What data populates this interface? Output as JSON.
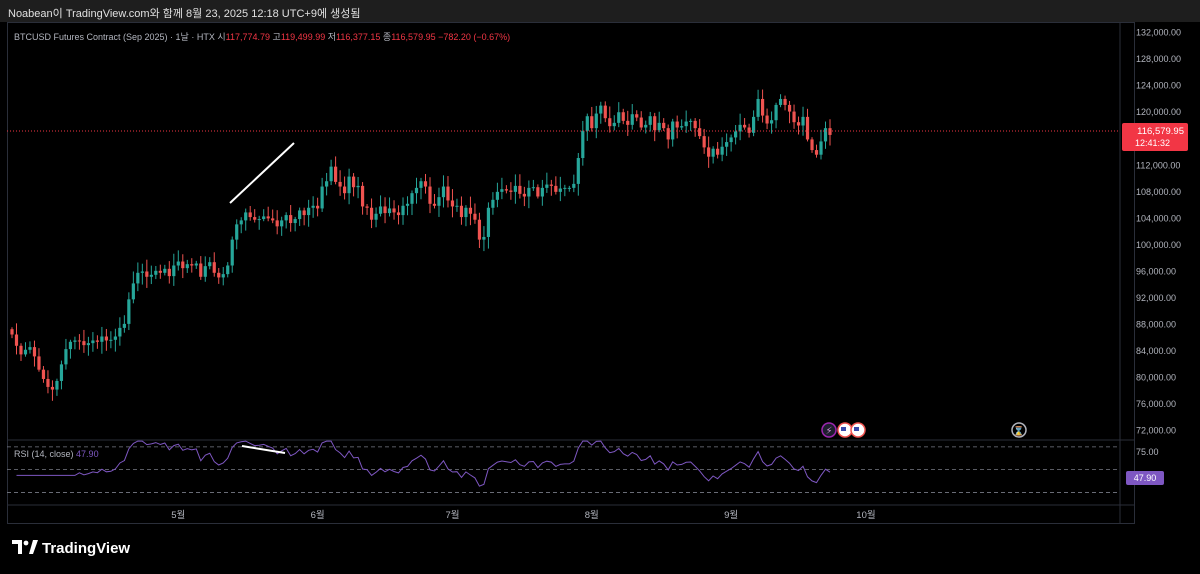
{
  "window": {
    "title": "Noabean이 TradingView.com와 함께 8월 23, 2025 12:18 UTC+9에 생성됨"
  },
  "legend": {
    "symbol": "BTCUSD Futures Contract (Sep 2025) · 1날 · HTX",
    "open_label": "시",
    "open": "117,774.79",
    "high_label": "고",
    "high": "119,499.99",
    "low_label": "저",
    "low": "116,377.15",
    "close_label": "종",
    "close": "116,579.95",
    "change": "−782.20 (−0.67%)"
  },
  "rsi_legend": {
    "name": "RSI (14, close)",
    "value": "47.90"
  },
  "brand": {
    "name": "TradingView"
  },
  "colors": {
    "up": "#26a69a",
    "down": "#ef5350",
    "rsi": "#7e57c2",
    "price_tag": "#f23645",
    "background": "#000000"
  },
  "chart_data": [
    {
      "type": "candlestick",
      "title": "BTCUSD Futures Contract (Sep 2025)",
      "timeframe": "1D",
      "exchange": "HTX",
      "x_labels": [
        "5월",
        "6월",
        "7월",
        "8월",
        "9월",
        "10월"
      ],
      "y_ticks": [
        "72,000.00",
        "76,000.00",
        "80,000.00",
        "84,000.00",
        "88,000.00",
        "92,000.00",
        "96,000.00",
        "100,000.00",
        "104,000.00",
        "108,000.00",
        "112,000.00",
        "116,000.00",
        "120,000.00",
        "124,000.00",
        "128,000.00",
        "132,000.00"
      ],
      "ylim": [
        70600,
        133600
      ],
      "last_price": "116,579.95",
      "countdown": "12:41:32",
      "series_close_approx": [
        86500,
        84800,
        83500,
        84200,
        84600,
        83200,
        81200,
        79800,
        78600,
        78200,
        79500,
        82000,
        84300,
        85400,
        85600,
        85500,
        84900,
        85200,
        85600,
        85400,
        86200,
        85600,
        85700,
        86200,
        87500,
        88100,
        91800,
        94200,
        95800,
        96000,
        95200,
        95500,
        96100,
        95800,
        96400,
        95300,
        96900,
        97500,
        96500,
        97100,
        96900,
        97200,
        95200,
        96800,
        97400,
        95800,
        95100,
        95600,
        96900,
        100800,
        103100,
        103700,
        104900,
        104200,
        103800,
        103900,
        104300,
        104000,
        103700,
        102800,
        103700,
        104500,
        103300,
        103900,
        105200,
        104500,
        105600,
        105900,
        105500,
        108800,
        109600,
        111800,
        109500,
        108800,
        107800,
        110300,
        108700,
        108900,
        105800,
        105600,
        103800,
        104700,
        105800,
        104800,
        105500,
        104900,
        104500,
        105900,
        106200,
        107800,
        108600,
        109600,
        108800,
        106200,
        105900,
        107200,
        108800,
        106700,
        105800,
        105900,
        104200,
        105600,
        104700,
        103800,
        100800,
        101200,
        105600,
        106800,
        108000,
        108400,
        108200,
        108000,
        108900,
        107700,
        107300,
        108600,
        108700,
        107300,
        108600,
        109100,
        108900,
        108000,
        108500,
        108600,
        108600,
        109200,
        113100,
        117200,
        119400,
        117600,
        119800,
        121000,
        119100,
        117900,
        118400,
        120000,
        118700,
        118100,
        119700,
        119200,
        117700,
        118100,
        119400,
        117300,
        118400,
        117600,
        115900,
        118600,
        117700,
        117900,
        118600,
        118700,
        117600,
        116400,
        114700,
        113300,
        114500,
        113600,
        114800,
        115500,
        116200,
        117100,
        118100,
        117700,
        116900,
        119300,
        122000,
        119500,
        118300,
        118800,
        121100,
        122000,
        121100,
        120100,
        118500,
        118000,
        119300,
        115900,
        114300,
        113600,
        115600,
        117600,
        116580
      ]
    },
    {
      "type": "line",
      "title": "RSI (14, close)",
      "value": "47.90",
      "levels": [
        30,
        50,
        70
      ],
      "y_ticks": [
        "75.00"
      ],
      "ylim": [
        19,
        76
      ]
    }
  ]
}
